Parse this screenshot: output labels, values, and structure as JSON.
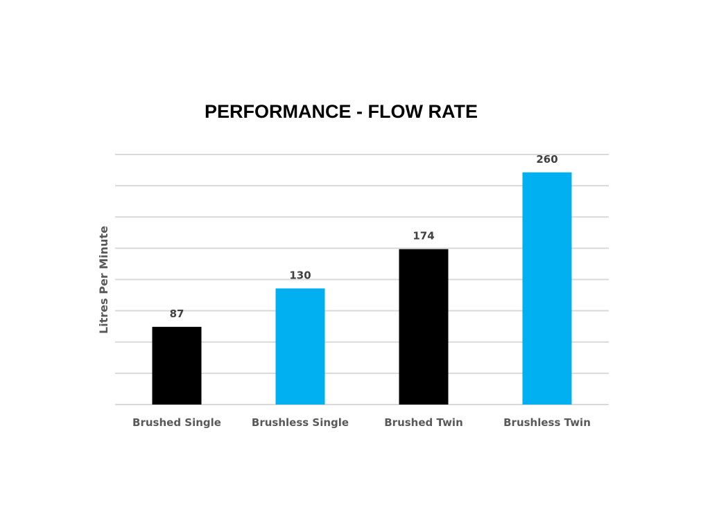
{
  "chart_data": {
    "type": "bar",
    "title": "PERFORMANCE - FLOW RATE",
    "xlabel": "",
    "ylabel": "Litres Per Minute",
    "categories": [
      "Brushed Single",
      "Brushless Single",
      "Brushed Twin",
      "Brushless Twin"
    ],
    "values": [
      87,
      130,
      174,
      260
    ],
    "bar_colors": [
      "#000000",
      "#00b0f0",
      "#000000",
      "#00b0f0"
    ],
    "ylim": [
      0,
      280
    ],
    "grid": true,
    "legend": "none",
    "data_labels": true
  }
}
